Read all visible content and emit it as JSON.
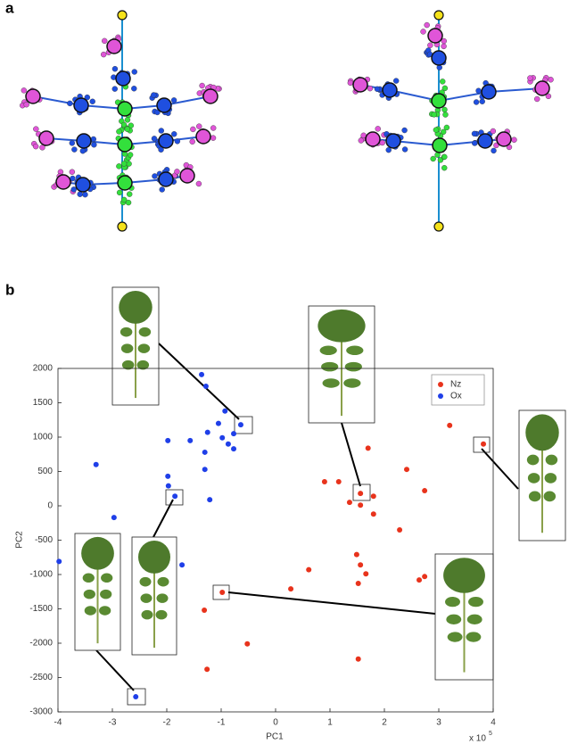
{
  "panel_labels": [
    "a",
    "b"
  ],
  "chart_data": {
    "type": "scatter",
    "x_label": "PC1",
    "y_label": "PC2",
    "x_scale_label": {
      "base": "x 10",
      "exponent": "5"
    },
    "xlim": [
      -4,
      4
    ],
    "ylim": [
      -3000,
      2000
    ],
    "xticks": [
      -4,
      -3,
      -2,
      -1,
      0,
      1,
      2,
      3,
      4
    ],
    "yticks": [
      -3000,
      -2500,
      -2000,
      -1500,
      -1000,
      -500,
      0,
      500,
      1000,
      1500,
      2000
    ],
    "grid": false,
    "legend": "upper right",
    "series": [
      {
        "name": "Nz",
        "color": "#e8331c",
        "x": [
          3.82,
          3.2,
          1.7,
          2.41,
          2.74,
          1.16,
          0.9,
          1.36,
          1.56,
          1.8,
          1.56,
          1.8,
          2.28,
          1.49,
          1.56,
          1.66,
          0.61,
          0.28,
          1.52,
          2.64,
          2.74,
          -0.98,
          -1.31,
          -0.52,
          -1.26,
          1.52
        ],
        "y": [
          900,
          1170,
          840,
          530,
          220,
          350,
          350,
          50,
          180,
          140,
          10,
          -120,
          -350,
          -710,
          -860,
          -990,
          -930,
          -1210,
          -1130,
          -1080,
          -1030,
          -1260,
          -1520,
          -2010,
          -2380,
          -2230
        ]
      },
      {
        "name": "Ox",
        "color": "#1f3fe8",
        "x": [
          -1.36,
          -1.28,
          -0.93,
          -1.05,
          -0.64,
          -0.77,
          -1.25,
          -0.87,
          -0.77,
          -0.98,
          -1.98,
          -1.57,
          -1.3,
          -3.3,
          -1.98,
          -1.3,
          -1.97,
          -1.85,
          -1.21,
          -2.97,
          -3.98,
          -1.72,
          -2.57
        ],
        "y": [
          1910,
          1740,
          1380,
          1200,
          1180,
          1050,
          1070,
          900,
          830,
          990,
          950,
          950,
          780,
          600,
          430,
          530,
          290,
          140,
          90,
          -170,
          -810,
          -860,
          -2780
        ]
      }
    ]
  }
}
